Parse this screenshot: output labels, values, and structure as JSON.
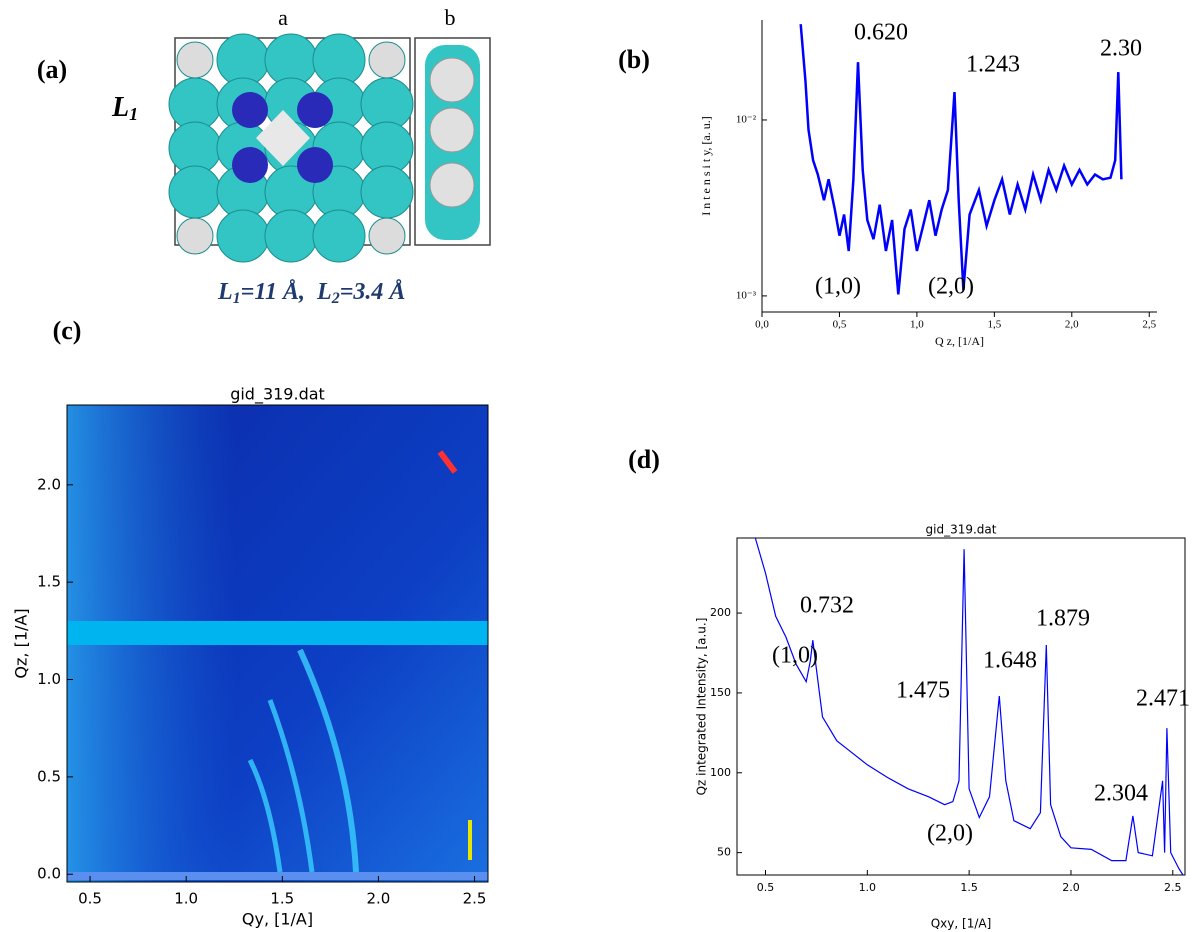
{
  "panel_labels": [
    "(a)",
    "(b)",
    "(c)",
    "(d)"
  ],
  "molecule": {
    "axis_labels": [
      "a",
      "b"
    ],
    "name": {
      "base": "L",
      "sub": "1"
    },
    "caption": [
      {
        "base": "L",
        "sub": "1",
        "rest": "=11 Å,"
      },
      {
        "base": "L",
        "sub": "2",
        "rest": "=3.4 Å"
      }
    ]
  },
  "chart_data": [
    {
      "type": "line",
      "log_y": true,
      "xlabel": "Q z, [1/A]",
      "ylabel": "I n t e n s i t y, [a. u.]",
      "xlim": [
        0,
        2.55
      ],
      "ylim": [
        0.00081,
        0.037
      ],
      "xticks": [
        {
          "value": 0,
          "label": "0,0"
        },
        {
          "value": 0.5,
          "label": "0,5"
        },
        {
          "value": 1,
          "label": "1,0"
        },
        {
          "value": 1.5,
          "label": "1,5"
        },
        {
          "value": 2,
          "label": "2,0"
        },
        {
          "value": 2.5,
          "label": "2,5"
        }
      ],
      "yticks": [
        {
          "value": 0.01,
          "label": "10⁻²"
        },
        {
          "value": 0.001,
          "label": "10⁻³"
        }
      ],
      "annotations": [
        "0.620",
        "1.243",
        "2.30",
        "(1,0)",
        "(2,0)"
      ],
      "series": [
        {
          "color": "#0000ff",
          "x": [
            0.25,
            0.28,
            0.3,
            0.33,
            0.36,
            0.4,
            0.43,
            0.47,
            0.5,
            0.53,
            0.56,
            0.59,
            0.62,
            0.65,
            0.68,
            0.72,
            0.76,
            0.8,
            0.84,
            0.88,
            0.92,
            0.96,
            1.0,
            1.04,
            1.08,
            1.12,
            1.16,
            1.2,
            1.243,
            1.27,
            1.3,
            1.34,
            1.4,
            1.45,
            1.5,
            1.55,
            1.6,
            1.65,
            1.7,
            1.75,
            1.8,
            1.85,
            1.9,
            1.95,
            2.0,
            2.05,
            2.1,
            2.15,
            2.2,
            2.25,
            2.28,
            2.3,
            2.32
          ],
          "values": [
            0.035,
            0.0168,
            0.0088,
            0.0059,
            0.0049,
            0.0035,
            0.0046,
            0.0031,
            0.0022,
            0.0029,
            0.0018,
            0.0046,
            0.0213,
            0.0052,
            0.0027,
            0.0021,
            0.0033,
            0.0018,
            0.0027,
            0.00102,
            0.0024,
            0.0031,
            0.0018,
            0.0025,
            0.0035,
            0.0022,
            0.0031,
            0.004,
            0.0144,
            0.0035,
            0.00108,
            0.0029,
            0.004,
            0.0025,
            0.0035,
            0.0046,
            0.0029,
            0.0043,
            0.0031,
            0.0049,
            0.0035,
            0.0052,
            0.004,
            0.0055,
            0.0043,
            0.0052,
            0.0043,
            0.0049,
            0.0046,
            0.0047,
            0.0059,
            0.0187,
            0.0046
          ]
        }
      ]
    },
    {
      "type": "image",
      "title": "gid_319.dat",
      "xlabel": "Qy, [1/A]",
      "ylabel": "Qz, [1/A]",
      "xlim": [
        0.38,
        2.57
      ],
      "ylim": [
        -0.04,
        2.41
      ],
      "xticks": [
        {
          "value": 0.5,
          "label": "0.5"
        },
        {
          "value": 1,
          "label": "1.0"
        },
        {
          "value": 1.5,
          "label": "1.5"
        },
        {
          "value": 2,
          "label": "2.0"
        },
        {
          "value": 2.5,
          "label": "2.5"
        }
      ],
      "yticks": [
        {
          "value": 0,
          "label": "0.0"
        },
        {
          "value": 0.5,
          "label": "0.5"
        },
        {
          "value": 1,
          "label": "1.0"
        },
        {
          "value": 1.5,
          "label": "1.5"
        },
        {
          "value": 2,
          "label": "2.0"
        }
      ]
    },
    {
      "type": "line",
      "log_y": false,
      "title": "gid_319.dat",
      "xlabel": "Qxy, [1/A]",
      "ylabel": "Qz integrated Intensity, [a.u.]",
      "xlim": [
        0.36,
        2.56
      ],
      "ylim": [
        36,
        247
      ],
      "xticks": [
        0.5,
        {
          "value": 1,
          "label": "1.0"
        },
        1.5,
        {
          "value": 2,
          "label": "2.0"
        },
        2.5
      ],
      "yticks": [
        50,
        100,
        150,
        200
      ],
      "annotations": [
        "0.732",
        "1.475",
        "1.648",
        "1.879",
        "2.304",
        "2.471",
        "(1,0)",
        "(2,0)"
      ],
      "series": [
        {
          "color": "#0000ff",
          "x": [
            0.45,
            0.5,
            0.55,
            0.6,
            0.65,
            0.7,
            0.72,
            0.732,
            0.75,
            0.78,
            0.85,
            0.9,
            1.0,
            1.1,
            1.2,
            1.3,
            1.38,
            1.42,
            1.45,
            1.475,
            1.5,
            1.55,
            1.6,
            1.648,
            1.68,
            1.72,
            1.8,
            1.85,
            1.879,
            1.9,
            1.95,
            2.0,
            2.1,
            2.2,
            2.27,
            2.304,
            2.33,
            2.4,
            2.45,
            2.46,
            2.471,
            2.49,
            2.53,
            2.55
          ],
          "values": [
            247,
            225,
            198,
            185,
            168,
            157,
            170,
            183,
            165,
            135,
            120,
            115,
            105,
            97,
            90,
            85,
            80,
            82,
            95,
            240,
            90,
            72,
            85,
            148,
            95,
            70,
            65,
            75,
            180,
            80,
            60,
            53,
            52,
            45,
            45,
            73,
            50,
            48,
            95,
            50,
            128,
            50,
            40,
            36
          ]
        }
      ]
    }
  ]
}
